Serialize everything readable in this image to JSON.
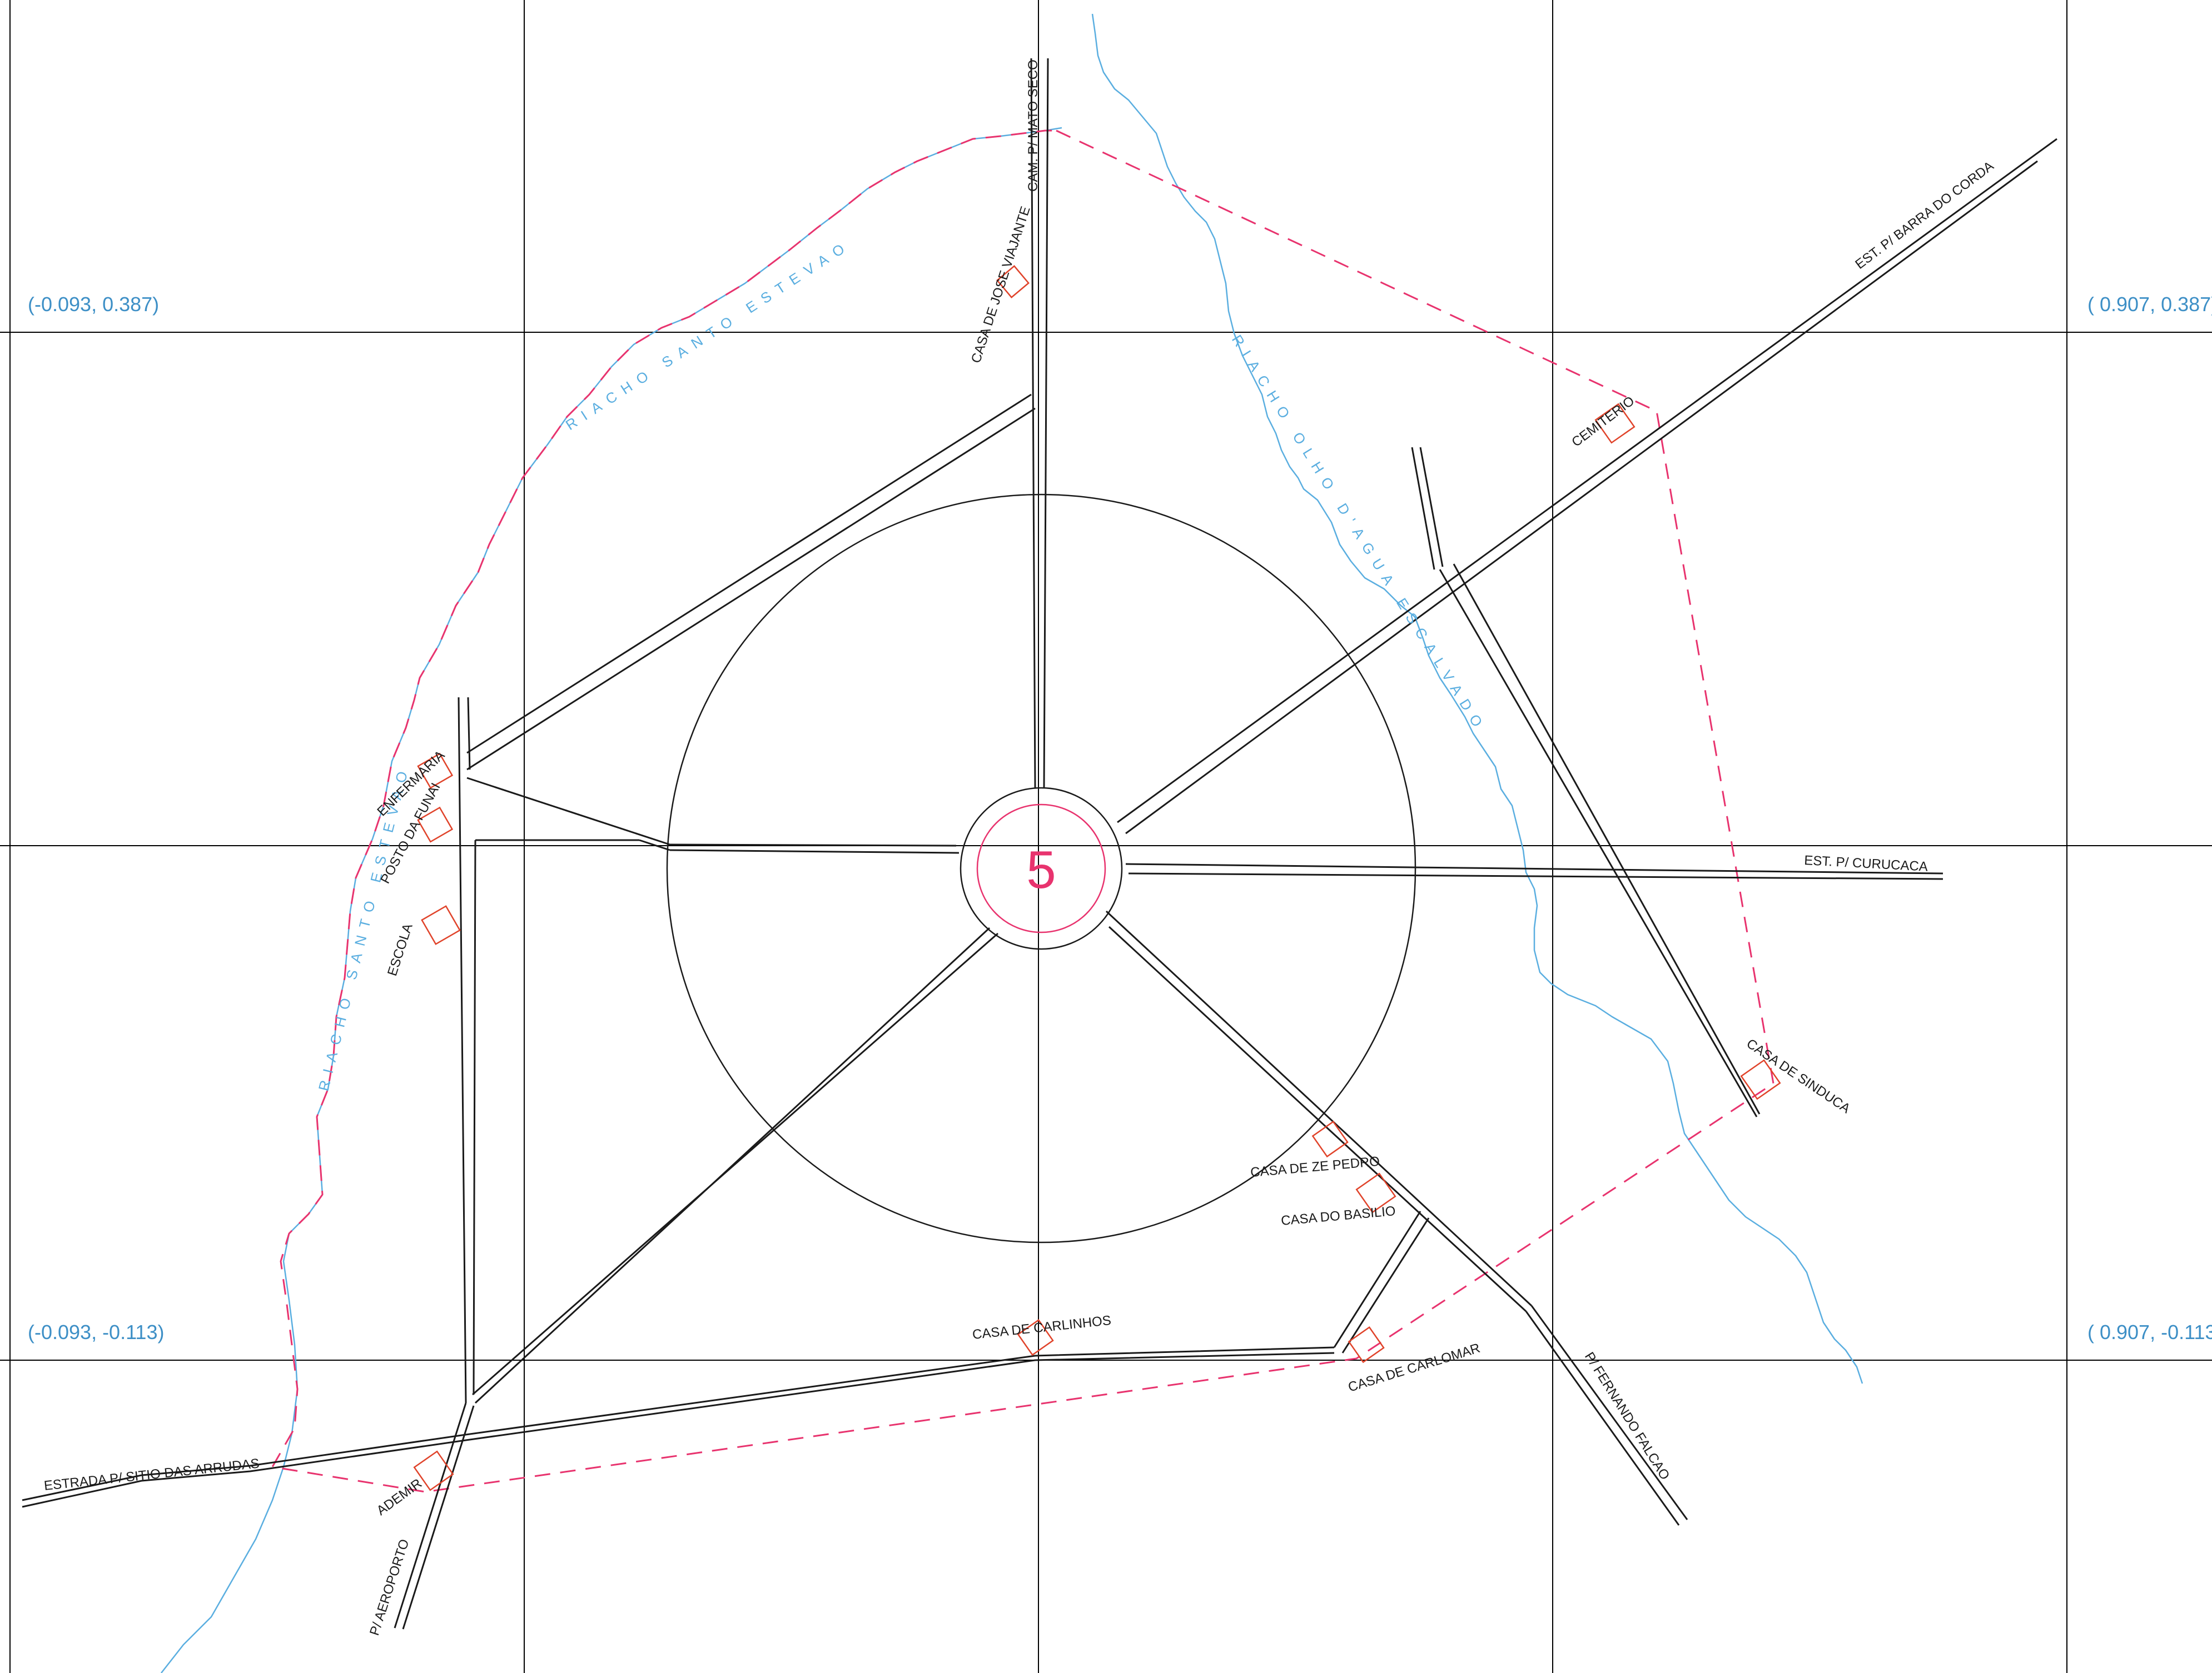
{
  "map": {
    "village_number": "5",
    "coordinates": {
      "top_left": "(-0.093,  0.387)",
      "top_right": "( 0.907,  0.387)",
      "bottom_left": "(-0.093, -0.113)",
      "bottom_right": "( 0.907, -0.113)"
    },
    "roads": {
      "mato_seco": "CAM. P/ MATO SECO",
      "barra_do_corda": "EST.  P/  BARRA DO  CORDA",
      "curucaca": "EST. P/ CURUCACA",
      "sitio_das_arrudas": "ESTRADA  P/  SITIO DAS ARRUDAS",
      "aeroporto": "P/ AEROPORTO",
      "fernando_falcao": "P/ FERNANDO FALCAO"
    },
    "rivers": {
      "santo_estevao_upper": "RIACHO  SANTO  ESTEVAO",
      "santo_estevao_lower": "RIACHO  SANTO  ESTEVAO",
      "olho_dagua": "RIACHO   OLHO   D'AGUA   ESCALVADO"
    },
    "buildings": {
      "jose_viajante": "CASA DE JOSE VIAJANTE",
      "cemiterio": "CEMITERIO",
      "enfermaria": "ENFERMARIA",
      "posto_funai": "POSTO DA FUNAI",
      "escola": "ESCOLA",
      "sinduca": "CASA DE SINDUCA",
      "ze_pedro": "CASA DE ZE PEDRO",
      "basilio": "CASA DO BASILIO",
      "carlinhos": "CASA DE CARLINHOS",
      "carlomar": "CASA DE CARLOMAR",
      "ademir": "ADEMIR"
    },
    "colors": {
      "grid": "#000000",
      "coordinates": "#3d8fc6",
      "roads": "#1a1a1a",
      "rivers": "#5aaee0",
      "boundary": "#e8336e",
      "houses": "#e0432a"
    }
  }
}
